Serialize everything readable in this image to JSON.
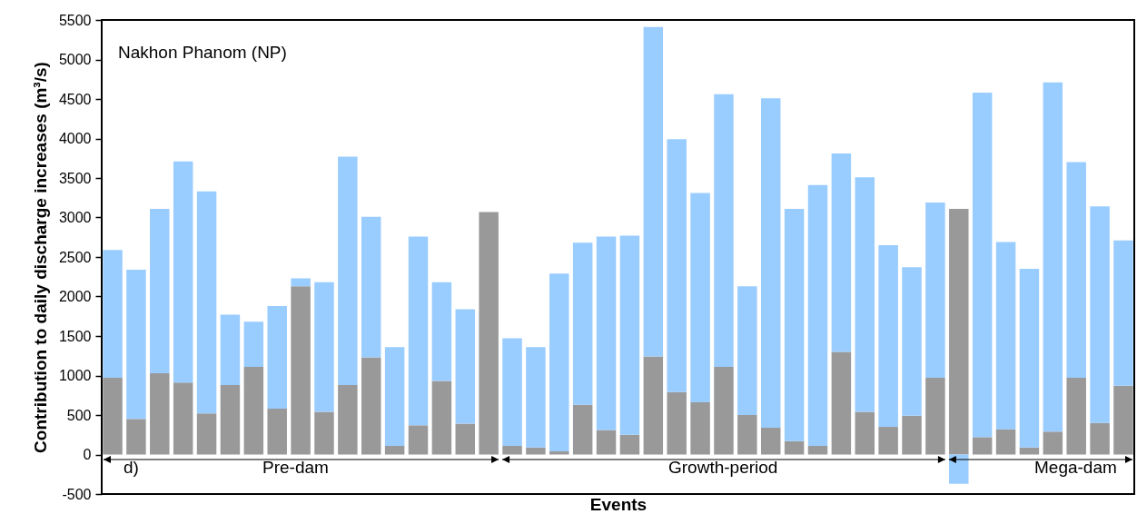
{
  "chart_data": {
    "type": "bar",
    "title": "Nakhon Phanom (NP)",
    "xlabel": "Events",
    "ylabel": "Contribution to daily discharge increases (m³/s)",
    "categories": [
      null,
      null,
      null,
      null,
      null,
      null,
      null,
      null,
      null,
      null,
      null,
      null,
      null,
      null,
      null,
      null,
      null,
      null,
      null,
      null,
      null,
      null,
      null,
      null,
      null,
      null,
      null,
      null,
      null,
      null,
      null,
      null,
      null,
      null,
      null,
      null,
      null,
      null,
      null,
      null,
      null,
      null,
      null,
      null
    ],
    "stacked": true,
    "tick_labels": "y",
    "ylim": [
      -500,
      5500
    ],
    "yticks": [
      -500,
      0,
      500,
      1000,
      1500,
      2000,
      2500,
      3000,
      3500,
      4000,
      4500,
      5000,
      5500
    ],
    "annotations": [
      "d)",
      "Pre-dam",
      "Growth-period",
      "Mega-dam"
    ],
    "series": [
      {
        "color": "#999999",
        "values": [
          970,
          450,
          1030,
          910,
          520,
          880,
          1110,
          580,
          2130,
          540,
          880,
          1230,
          110,
          370,
          930,
          390,
          3070,
          110,
          90,
          40,
          630,
          310,
          250,
          1240,
          790,
          660,
          1110,
          500,
          340,
          170,
          110,
          1300,
          540,
          350,
          490,
          970,
          3110,
          220,
          320,
          90,
          290,
          970,
          400,
          870
        ]
      },
      {
        "color": "#99ccff",
        "values": [
          1620,
          1890,
          2080,
          2800,
          2810,
          890,
          570,
          1300,
          100,
          1640,
          2890,
          1780,
          1250,
          2390,
          1250,
          1450,
          0,
          1360,
          1270,
          2250,
          2050,
          2450,
          2520,
          4170,
          3200,
          2650,
          3450,
          1630,
          4170,
          2940,
          3300,
          2510,
          2970,
          2300,
          1880,
          2220,
          -370,
          4360,
          2370,
          2260,
          4420,
          2730,
          2740,
          1840
        ]
      }
    ]
  }
}
